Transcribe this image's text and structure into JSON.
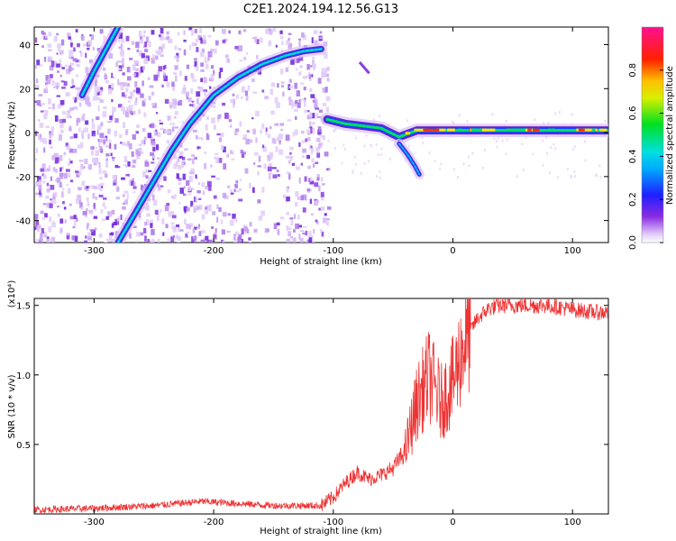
{
  "title": "C2E1.2024.194.12.56.G13",
  "chart_data": [
    {
      "type": "heatmap",
      "xlabel": "Height of straight line (km)",
      "ylabel": "Frequency (Hz)",
      "xlim": [
        -350,
        130
      ],
      "ylim": [
        -50,
        48
      ],
      "xticks": [
        -300,
        -200,
        -100,
        0,
        100
      ],
      "yticks": [
        -40,
        -20,
        0,
        20,
        40
      ],
      "colorbar": {
        "label": "Normalized spectral amplitude",
        "range": [
          0,
          1
        ],
        "ticks": [
          "0.0",
          "0.2",
          "0.4",
          "0.6",
          "0.8"
        ],
        "colormap": "rainbow (white/violet low, blue, cyan, green, yellow, red, magenta high)"
      },
      "features": [
        {
          "name": "steep rising trace",
          "points": [
            [
              -310,
              17
            ],
            [
              -300,
              28
            ],
            [
              -290,
              38
            ],
            [
              -280,
              48
            ]
          ]
        },
        {
          "name": "main rising curve",
          "points": [
            [
              -280,
              -50
            ],
            [
              -265,
              -36
            ],
            [
              -250,
              -22
            ],
            [
              -235,
              -8
            ],
            [
              -220,
              4
            ],
            [
              -200,
              17
            ],
            [
              -180,
              25
            ],
            [
              -160,
              31
            ],
            [
              -140,
              35
            ],
            [
              -125,
              37
            ],
            [
              -110,
              38
            ]
          ]
        },
        {
          "name": "near-zero band",
          "points": [
            [
              -105,
              6
            ],
            [
              -90,
              4
            ],
            [
              -75,
              3
            ],
            [
              -60,
              2
            ],
            [
              -45,
              -2
            ],
            [
              -30,
              1
            ],
            [
              -10,
              1
            ],
            [
              20,
              1
            ],
            [
              60,
              1
            ],
            [
              100,
              1
            ],
            [
              130,
              1
            ]
          ]
        },
        {
          "name": "descending trace",
          "points": [
            [
              -45,
              -5
            ],
            [
              -38,
              -10
            ],
            [
              -32,
              -15
            ],
            [
              -28,
              -19
            ]
          ]
        }
      ]
    },
    {
      "type": "line",
      "xlabel": "Height of straight line (km)",
      "ylabel": "SNR (10 * v/v)",
      "y_multiplier": "(x10⁴)",
      "xlim": [
        -350,
        130
      ],
      "ylim": [
        0,
        1.55
      ],
      "xticks": [
        -300,
        -200,
        -100,
        0,
        100
      ],
      "yticks": [
        0.5,
        1.0,
        1.5
      ],
      "series": [
        {
          "color": "#ee3333",
          "x": [
            -350,
            -300,
            -250,
            -210,
            -150,
            -110,
            -100,
            -90,
            -80,
            -70,
            -60,
            -50,
            -40,
            -30,
            -20,
            -10,
            0,
            10,
            20,
            30,
            40,
            60,
            80,
            100,
            120,
            130
          ],
          "y": [
            0.03,
            0.04,
            0.06,
            0.09,
            0.06,
            0.06,
            0.12,
            0.22,
            0.3,
            0.25,
            0.28,
            0.33,
            0.45,
            0.8,
            1.0,
            0.8,
            0.95,
            1.25,
            1.4,
            1.48,
            1.5,
            1.5,
            1.5,
            1.47,
            1.45,
            1.45
          ]
        }
      ]
    }
  ]
}
